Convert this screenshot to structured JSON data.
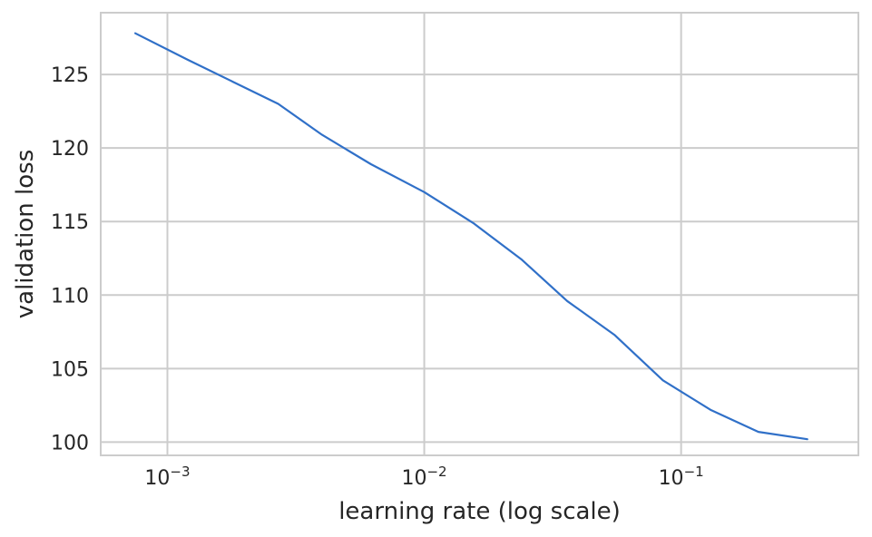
{
  "chart_data": {
    "type": "line",
    "title": "",
    "xlabel": "learning rate (log scale)",
    "ylabel": "validation loss",
    "x_scale": "log",
    "xlim": [
      0.00055,
      0.49
    ],
    "ylim": [
      99.1,
      129.2
    ],
    "grid": true,
    "x_ticks": [
      {
        "value": 0.001,
        "base": "10",
        "exp": "−3"
      },
      {
        "value": 0.01,
        "base": "10",
        "exp": "−2"
      },
      {
        "value": 0.1,
        "base": "10",
        "exp": "−1"
      }
    ],
    "y_ticks": [
      {
        "value": 100,
        "label": "100"
      },
      {
        "value": 105,
        "label": "105"
      },
      {
        "value": 110,
        "label": "110"
      },
      {
        "value": 115,
        "label": "115"
      },
      {
        "value": 120,
        "label": "120"
      },
      {
        "value": 125,
        "label": "125"
      }
    ],
    "series": [
      {
        "color": "#3070c8",
        "x": [
          0.00075,
          0.0012,
          0.0018,
          0.0027,
          0.004,
          0.0062,
          0.01,
          0.0155,
          0.024,
          0.036,
          0.055,
          0.085,
          0.13,
          0.2,
          0.31
        ],
        "y": [
          127.8,
          126.0,
          124.5,
          123.0,
          120.9,
          118.9,
          117.0,
          114.9,
          112.4,
          109.6,
          107.3,
          104.2,
          102.2,
          100.7,
          100.2
        ]
      }
    ]
  }
}
